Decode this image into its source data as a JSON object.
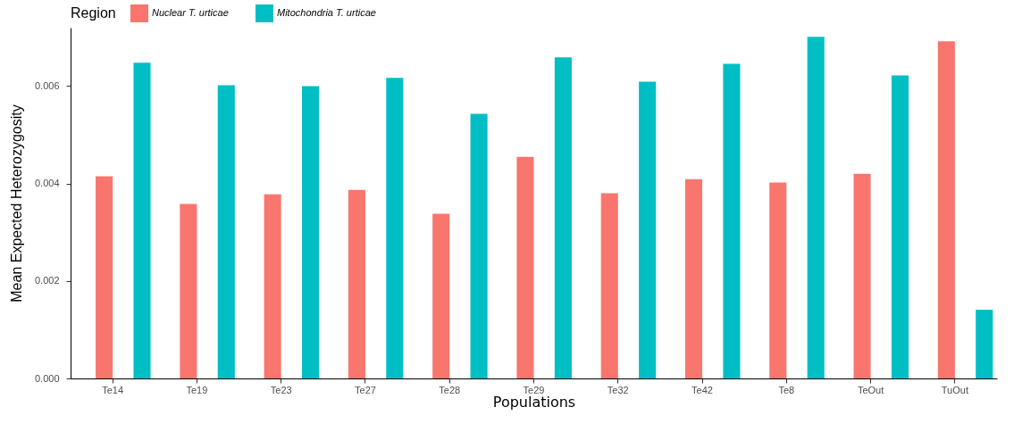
{
  "chart_data": {
    "type": "bar",
    "xlabel": "Populations",
    "ylabel": "Mean Expected Heterozygosity",
    "legend_title": "Region",
    "legend": "top",
    "grid": false,
    "categories": [
      "Te14",
      "Te19",
      "Te23",
      "Te27",
      "Te28",
      "Te29",
      "Te32",
      "Te42",
      "Te8",
      "TeOut",
      "TuOut"
    ],
    "series": [
      {
        "name": "Nuclear T. urticae",
        "color": "#f8766d",
        "values": [
          0.00415,
          0.00358,
          0.00378,
          0.00387,
          0.00338,
          0.00455,
          0.0038,
          0.00409,
          0.00402,
          0.0042,
          0.00692
        ]
      },
      {
        "name": "Mitochondria T. urticae",
        "color": "#00bfc4",
        "values": [
          0.00648,
          0.00602,
          0.006,
          0.00617,
          0.00543,
          0.00659,
          0.00609,
          0.00646,
          0.00701,
          0.00622,
          0.00141
        ]
      }
    ],
    "ylim": [
      0,
      0.0072
    ],
    "yticks": [
      {
        "value": 0,
        "label": "0.000"
      },
      {
        "value": 0.002,
        "label": "0.002"
      },
      {
        "value": 0.004,
        "label": "0.004"
      },
      {
        "value": 0.006,
        "label": "0.006"
      }
    ]
  }
}
